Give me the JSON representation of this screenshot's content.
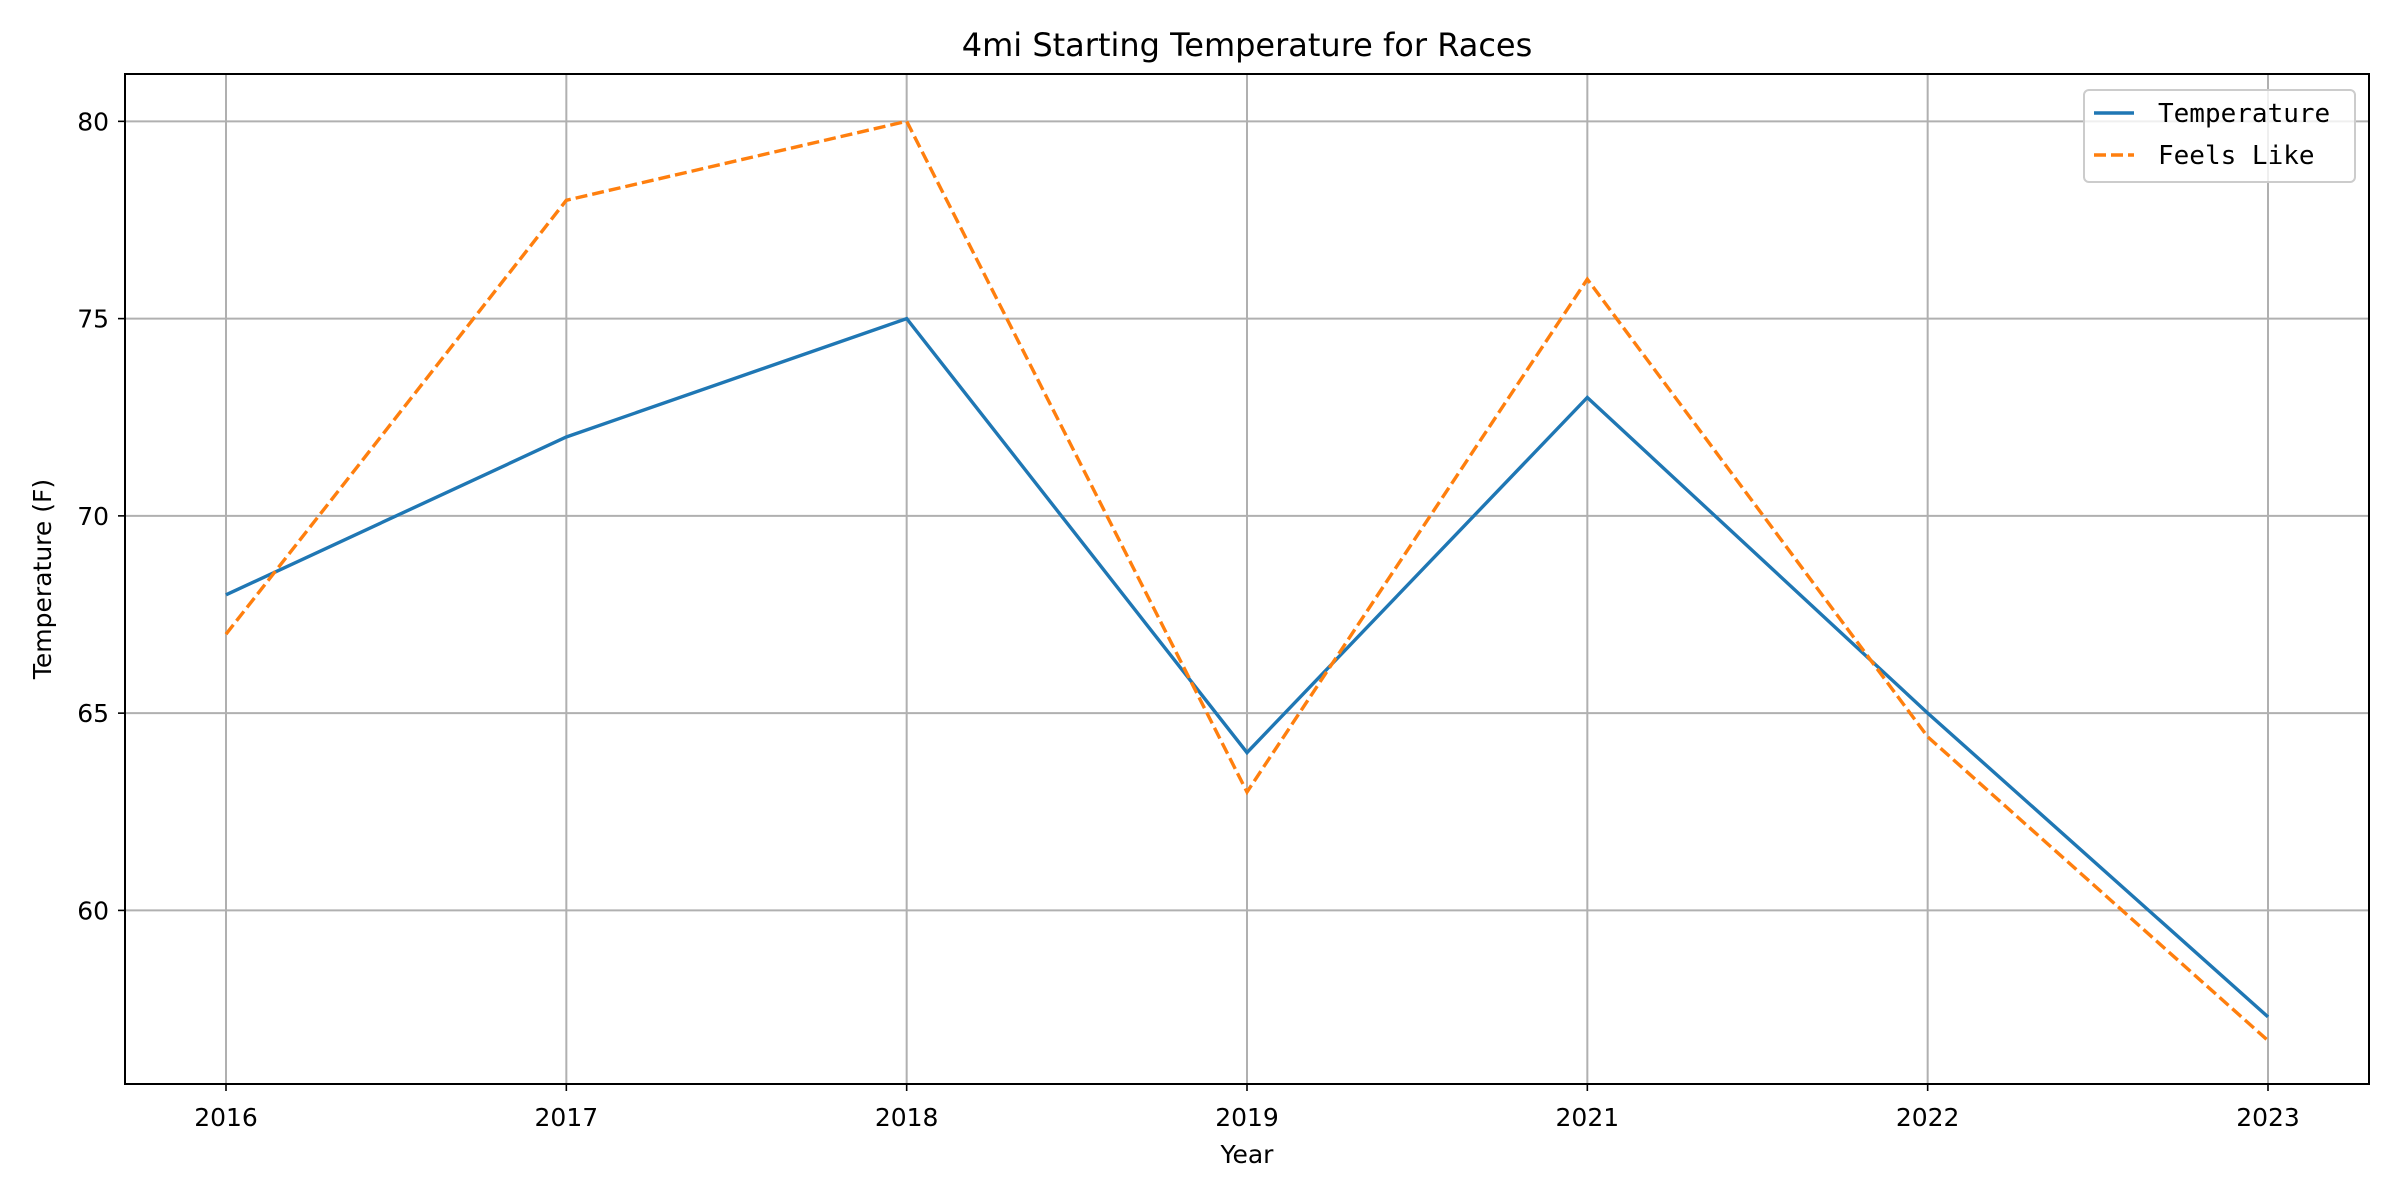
{
  "chart_data": {
    "type": "line",
    "title": "4mi Starting Temperature for Races",
    "xlabel": "Year",
    "ylabel": "Temperature (F)",
    "categories": [
      "2016",
      "2017",
      "2018",
      "2019",
      "2021",
      "2022",
      "2023"
    ],
    "ylim": [
      55.6,
      81.2
    ],
    "yticks": [
      60,
      65,
      70,
      75,
      80
    ],
    "grid": true,
    "legend_position": "top-right",
    "series": [
      {
        "name": "Temperature",
        "values": [
          68,
          72,
          75,
          64,
          73,
          65,
          57.3
        ],
        "color": "#1f77b4",
        "style": "solid"
      },
      {
        "name": "Feels Like",
        "values": [
          67,
          78,
          80,
          63,
          76,
          64.4,
          56.7
        ],
        "color": "#ff7f0e",
        "style": "dashed"
      }
    ]
  }
}
